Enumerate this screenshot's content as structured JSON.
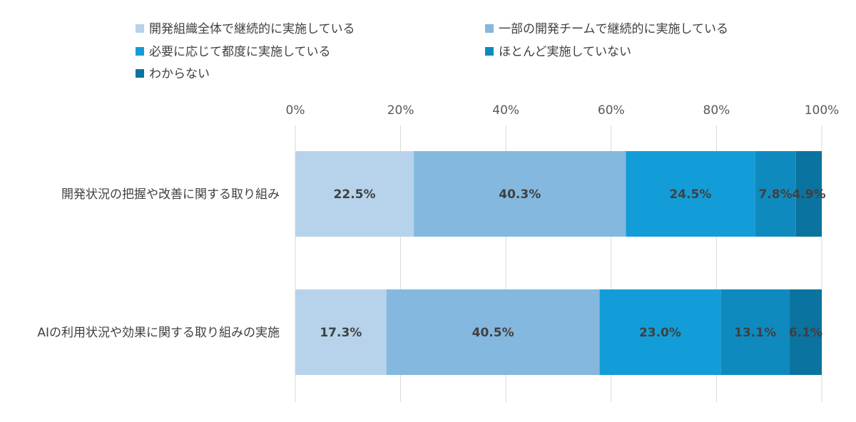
{
  "chart_data": {
    "type": "bar",
    "orientation": "horizontal",
    "stacked": true,
    "percent_stacked": true,
    "title": "",
    "xlabel": "",
    "ylabel": "",
    "xlim": [
      0,
      100
    ],
    "x_ticks": [
      "0%",
      "20%",
      "40%",
      "60%",
      "80%",
      "100%"
    ],
    "tick_values": [
      0,
      20,
      40,
      60,
      80,
      100
    ],
    "grid": true,
    "legend_position": "top",
    "categories": [
      "開発状況の把握や改善に関する取り組み",
      "AIの利用状況や効果に関する取り組みの実施"
    ],
    "series": [
      {
        "name": "開発組織全体で継続的に実施している",
        "color": "#b6d3eb",
        "values": [
          22.5,
          17.3
        ],
        "labels": [
          "22.5%",
          "17.3%"
        ]
      },
      {
        "name": "一部の開発チームで継続的に実施している",
        "color": "#84b8df",
        "values": [
          40.3,
          40.5
        ],
        "labels": [
          "40.3%",
          "40.5%"
        ]
      },
      {
        "name": "必要に応じて都度に実施している",
        "color": "#139dd8",
        "values": [
          24.5,
          23.0
        ],
        "labels": [
          "24.5%",
          "23.0%"
        ]
      },
      {
        "name": "ほとんど実施していない",
        "color": "#0f8abf",
        "values": [
          7.8,
          13.1
        ],
        "labels": [
          "7.8%",
          "13.1%"
        ]
      },
      {
        "name": "わからない",
        "color": "#0b739f",
        "values": [
          4.9,
          6.1
        ],
        "labels": [
          "4.9%",
          "6.1%"
        ]
      }
    ],
    "gridline_color": "#d9d9d9"
  }
}
